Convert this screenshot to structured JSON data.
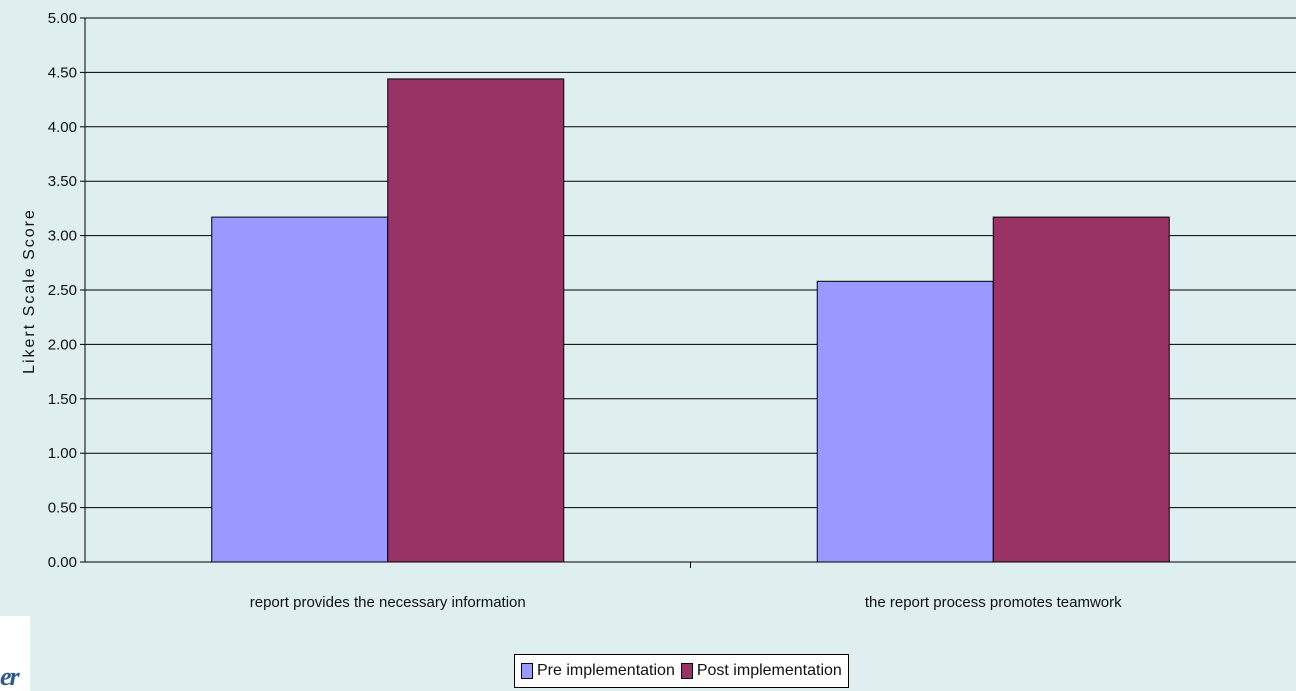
{
  "chart_data": {
    "type": "bar",
    "categories": [
      "report provides the necessary information",
      "the report process promotes teamwork"
    ],
    "series": [
      {
        "name": "Pre implementation",
        "values": [
          3.17,
          2.58
        ],
        "color": "#9999ff"
      },
      {
        "name": "Post implementation",
        "values": [
          4.44,
          3.17
        ],
        "color": "#993366"
      }
    ],
    "ylabel": "Likert Scale Score",
    "xlabel": "",
    "ylim": [
      0,
      5
    ],
    "yticks": [
      "0.00",
      "0.50",
      "1.00",
      "1.50",
      "2.00",
      "2.50",
      "3.00",
      "3.50",
      "4.00",
      "4.50",
      "5.00"
    ],
    "grid": true,
    "legend_position": "bottom"
  },
  "branding": {
    "partial_logo_text": "er"
  }
}
